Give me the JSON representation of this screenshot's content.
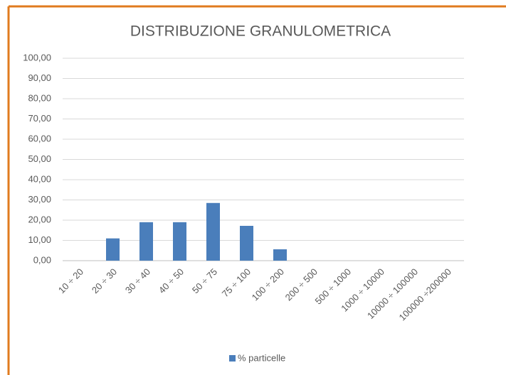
{
  "chart_data": {
    "type": "bar",
    "title": "DISTRIBUZIONE GRANULOMETRICA",
    "categories": [
      "10 ÷ 20",
      "20 ÷ 30",
      "30 ÷ 40",
      "40 ÷ 50",
      "50 ÷ 75",
      "75 ÷ 100",
      "100 ÷ 200",
      "200 ÷ 500",
      "500 ÷ 1000",
      "1000 ÷ 10000",
      "10000 ÷ 100000",
      "100000 ÷200000"
    ],
    "series": [
      {
        "name": "% particelle",
        "color": "#4a7ebb",
        "values": [
          0,
          11,
          19,
          19,
          28.5,
          17.2,
          5.6,
          0,
          0,
          0,
          0,
          0
        ]
      }
    ],
    "ylim": [
      0,
      100
    ],
    "yticks": [
      {
        "value": 0,
        "label": "0,00"
      },
      {
        "value": 10,
        "label": "10,00"
      },
      {
        "value": 20,
        "label": "20,00"
      },
      {
        "value": 30,
        "label": "30,00"
      },
      {
        "value": 40,
        "label": "40,00"
      },
      {
        "value": 50,
        "label": "50,00"
      },
      {
        "value": 60,
        "label": "60,00"
      },
      {
        "value": 70,
        "label": "70,00"
      },
      {
        "value": 80,
        "label": "80,00"
      },
      {
        "value": 90,
        "label": "90,00"
      },
      {
        "value": 100,
        "label": "100,00"
      }
    ],
    "grid": true,
    "legend": "bottom"
  }
}
